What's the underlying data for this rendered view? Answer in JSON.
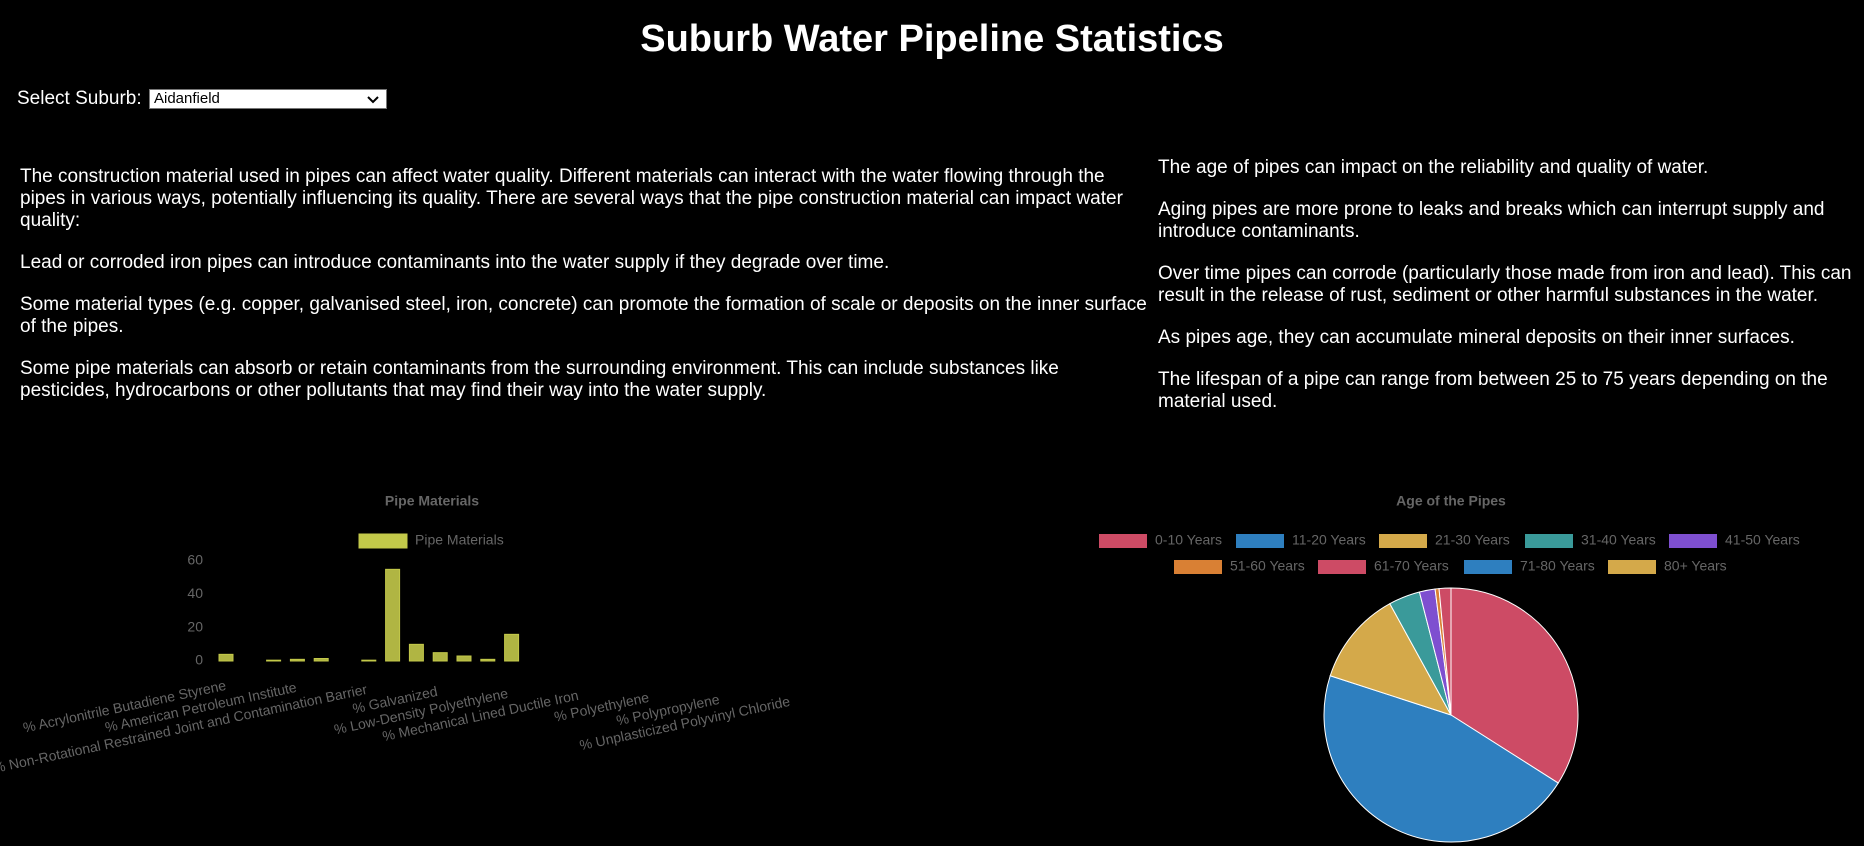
{
  "title": "Suburb Water Pipeline Statistics",
  "select": {
    "label": "Select Suburb:",
    "value": "Aidanfield"
  },
  "left_text": [
    "The construction material used in pipes can affect water quality. Different materials can interact with the water flowing through the pipes in various ways, potentially influencing its quality. There are several ways that the pipe construction material can impact water quality:",
    "Lead or corroded iron pipes can introduce contaminants into the water supply if they degrade over time.",
    "Some material types (e.g. copper, galvanised steel, iron, concrete) can promote the formation of scale or deposits on the inner surface of the pipes.",
    "Some pipe materials can absorb or retain contaminants from the surrounding environment. This can include substances like pesticides, hydrocarbons or other pollutants that may find their way into the water supply."
  ],
  "right_text": [
    "The age of pipes can impact on the reliability and quality of water.",
    "Aging pipes are more prone to leaks and breaks which can interrupt supply and introduce contaminants.",
    "Over time pipes can corrode (particularly those made from iron and lead). This can result in the release of rust, sediment or other harmful substances in the water.",
    "As pipes age, they can accumulate mineral deposits on their inner surfaces.",
    "The lifespan of a pipe can range from between 25 to 75 years depending on the material used."
  ],
  "chart_data": [
    {
      "type": "bar",
      "title": "Pipe Materials",
      "categories": [
        "% Acrylonitrile Butadiene Styrene",
        "% American Petroleum Institute",
        null,
        "% Non-Rotational Restrained Joint and Contamination Barrier",
        null,
        null,
        "% Galvanized",
        "% Low-Density Polyethylene",
        null,
        "% Mechanical Lined Ductile Iron",
        "% Polyethylene",
        "% Polypropylene",
        "% Unplasticized Polyvinyl Chloride"
      ],
      "series": [
        {
          "name": "Pipe Materials",
          "color": "#c3c94a",
          "values": [
            4,
            0,
            0.5,
            1,
            1.5,
            0,
            0.5,
            55,
            10,
            5,
            3,
            1,
            16
          ]
        }
      ],
      "ylim": [
        0,
        60
      ],
      "yticks": [
        0,
        20,
        40,
        60
      ],
      "legend": "top"
    },
    {
      "type": "pie",
      "title": "Age of the Pipes",
      "categories": [
        "0-10 Years",
        "11-20 Years",
        "21-30 Years",
        "31-40 Years",
        "41-50 Years",
        "51-60 Years",
        "61-70 Years",
        "71-80 Years",
        "80+ Years"
      ],
      "values": [
        34,
        46,
        12,
        4,
        2,
        0.5,
        1.5,
        0,
        0
      ],
      "colors": [
        "#cd4b65",
        "#2e7fbf",
        "#d4a94a",
        "#3a9a9a",
        "#7e4fd0",
        "#d98034",
        "#cd4b65",
        "#2e7fbf",
        "#d4a94a"
      ],
      "legend": "top"
    }
  ]
}
